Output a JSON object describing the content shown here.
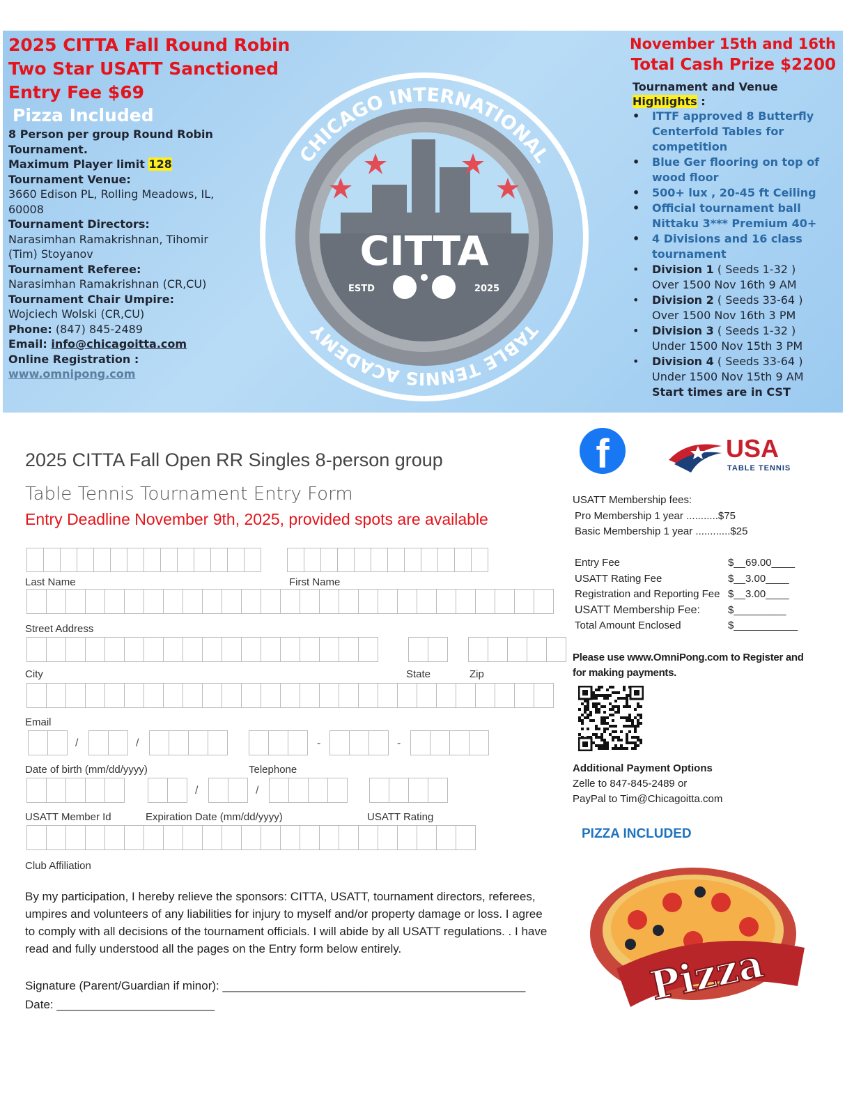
{
  "banner": {
    "title_lines": [
      "2025 CITTA  Fall Round Robin",
      "Two Star USATT Sanctioned",
      "Entry Fee $69"
    ],
    "pizza": "Pizza Included",
    "group_text": "8 Person per group Round Robin Tournament.",
    "max_label": "Maximum Player limit ",
    "max_value": "128",
    "venue_label": "Tournament Venue:",
    "venue": "3660 Edison PL, Rolling Meadows,  IL, 60008",
    "directors_label": "Tournament Directors:",
    "directors": "Narasimhan Ramakrishnan, Tihomir  (Tim) Stoyanov",
    "referee_label": "Tournament Referee:",
    "referee": "Narasimhan Ramakrishnan (CR,CU)",
    "umpire_label": "Tournament Chair Umpire:",
    "umpire": "Wojciech Wolski (CR,CU)",
    "phone_label": "Phone:",
    "phone": " (847) 845-2489",
    "email_label": "Email: ",
    "email": "info@chicagoitta.com",
    "reg_label": "Online Registration :",
    "reg_link": "www.omnipong.com",
    "dates": "November 15th and 16th",
    "prize": "Total Cash Prize $2200",
    "highlights_head": "Tournament and Venue",
    "highlights_word": "Highlights",
    " highlights_colon": " :",
    "highlights": [
      "ITTF approved 8 Butterfly Centerfold Tables for competition",
      "Blue Ger flooring on top of wood floor",
      "500+ lux , 20-45 ft Ceiling",
      "Official tournament ball Nittaku 3*** Premium 40+",
      "4 Divisions and 16 class tournament"
    ],
    "divisions": [
      {
        "name": "Division 1",
        "seeds": " ( Seeds 1-32 )",
        "detail": "Over 1500 Nov 16th 9 AM"
      },
      {
        "name": "Division 2",
        "seeds": " ( Seeds 33-64 )",
        "detail": "Over 1500  Nov 16th 3 PM"
      },
      {
        "name": "Division 3",
        "seeds": " ( Seeds 1-32 )",
        "detail": "Under 1500  Nov 15th  3 PM"
      },
      {
        "name": "Division 4",
        "seeds": " ( Seeds 33-64 )",
        "detail": "Under 1500  Nov 15th 9 AM"
      }
    ],
    "cst": "Start times are in CST",
    "logo": {
      "ring_text": "CHICAGO INTERNATIONAL TABLE TENNIS ACADEMY",
      "name": "CITTA",
      "estd": "ESTD",
      "year": "2025"
    }
  },
  "form": {
    "title": "2025 CITTA Fall Open RR Singles 8-person group",
    "subtitle": "Table Tennis Tournament Entry Form",
    "deadline": "Entry Deadline November 9th, 2025, provided spots are available",
    "labels": {
      "last": "Last Name",
      "first": "First Name",
      "street": "Street Address",
      "city": "City",
      "state": "State",
      "zip": "Zip",
      "email": "Email",
      "dob": "Date of birth (mm/dd/yyyy)",
      "phone": "Telephone",
      "member": "USATT Member Id",
      "exp": "Expiration Date (mm/dd/yyyy)",
      "rating": "USATT Rating",
      "club": "Club Affiliation"
    },
    "waiver": "By my participation, I hereby relieve the sponsors: CITTA, USATT, tournament directors, referees, umpires and volunteers of any liabilities for injury to myself and/or property damage or loss. I agree to comply with all decisions of the tournament officials.  I will abide by all USATT regulations. . I have read and fully understood all the pages on the Entry form below entirely.",
    "signature": "Signature (Parent/Guardian if minor): ______________________________________________",
    "date": "Date: ________________________"
  },
  "side": {
    "usa_logo": "USA TABLE TENNIS",
    "membership_head": "USATT Membership fees:",
    "pro": "Pro Membership 1 year   ...........$75",
    "basic": "Basic Membership 1 year ............$25",
    "fees": [
      {
        "label": "Entry Fee",
        "value": "$__69.00____"
      },
      {
        "label": "USATT Rating Fee",
        "value": "$__3.00____"
      },
      {
        "label": "Registration and Reporting Fee",
        "value": "$__3.00____"
      },
      {
        "label": "USATT Membership Fee:",
        "value": "$_________"
      },
      {
        "label": "Total Amount Enclosed",
        "value": "$___________"
      }
    ],
    "omnipong": "Please use www.OmniPong.com to Register and for making payments.",
    "additional": "Additional Payment Options",
    "zelle": "Zelle to 847-845-2489 or",
    "paypal": "PayPal to Tim@Chicagoitta.com",
    "pizza_included": "PIZZA INCLUDED",
    "pizza_word": "Pizza"
  }
}
